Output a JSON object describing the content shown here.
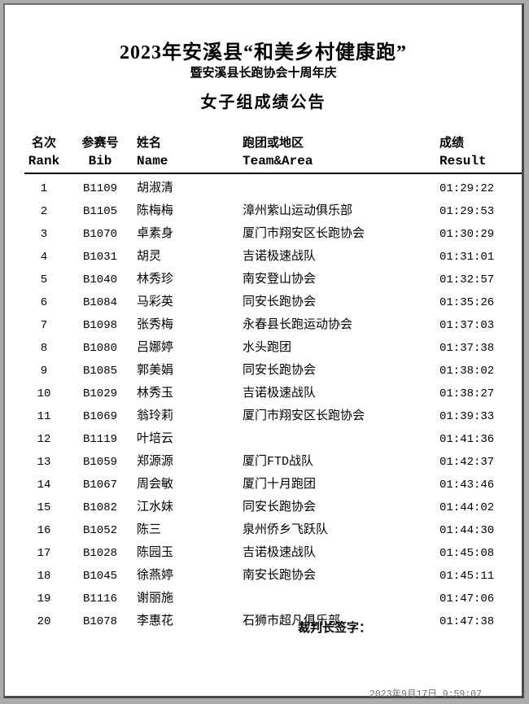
{
  "page": {
    "title_line1": "2023年安溪县“和美乡村健康跑”",
    "title_line2": "暨安溪县长跑协会十周年庆",
    "group_title": "女子组成绩公告",
    "signature_label": "裁判长签字：",
    "footer_timestamp": "2023年9月17日 9:59:07"
  },
  "colors": {
    "canvas_bg": "#ababab",
    "page_bg": "#ffffff",
    "text": "#000000",
    "timestamp_gray": "#6f6f6f",
    "frame_dark": "#4a4a4a",
    "frame_light": "#6e6e6e"
  },
  "table": {
    "headers": [
      {
        "zh": "名次",
        "en": "Rank"
      },
      {
        "zh": "参赛号",
        "en": "Bib"
      },
      {
        "zh": "姓名",
        "en": "Name"
      },
      {
        "zh": "跑团或地区",
        "en": "Team&Area"
      },
      {
        "zh": "成绩",
        "en": "Result"
      }
    ],
    "rows": [
      {
        "rank": "1",
        "bib": "B1109",
        "name": "胡淑清",
        "team": "",
        "result": "01:29:22"
      },
      {
        "rank": "2",
        "bib": "B1105",
        "name": "陈梅梅",
        "team": "漳州紫山运动俱乐部",
        "result": "01:29:53"
      },
      {
        "rank": "3",
        "bib": "B1070",
        "name": "卓素身",
        "team": "厦门市翔安区长跑协会",
        "result": "01:30:29"
      },
      {
        "rank": "4",
        "bib": "B1031",
        "name": "胡灵",
        "team": "吉诺极速战队",
        "result": "01:31:01"
      },
      {
        "rank": "5",
        "bib": "B1040",
        "name": "林秀珍",
        "team": "南安登山协会",
        "result": "01:32:57"
      },
      {
        "rank": "6",
        "bib": "B1084",
        "name": "马彩英",
        "team": "同安长跑协会",
        "result": "01:35:26"
      },
      {
        "rank": "7",
        "bib": "B1098",
        "name": "张秀梅",
        "team": "永春县长跑运动协会",
        "result": "01:37:03"
      },
      {
        "rank": "8",
        "bib": "B1080",
        "name": "吕娜婷",
        "team": "水头跑团",
        "result": "01:37:38"
      },
      {
        "rank": "9",
        "bib": "B1085",
        "name": "郭美娟",
        "team": "同安长跑协会",
        "result": "01:38:02"
      },
      {
        "rank": "10",
        "bib": "B1029",
        "name": "林秀玉",
        "team": "吉诺极速战队",
        "result": "01:38:27"
      },
      {
        "rank": "11",
        "bib": "B1069",
        "name": "翁玲莉",
        "team": "厦门市翔安区长跑协会",
        "result": "01:39:33"
      },
      {
        "rank": "12",
        "bib": "B1119",
        "name": "叶培云",
        "team": "",
        "result": "01:41:36"
      },
      {
        "rank": "13",
        "bib": "B1059",
        "name": "郑源源",
        "team": "厦门FTD战队",
        "result": "01:42:37"
      },
      {
        "rank": "14",
        "bib": "B1067",
        "name": "周会敏",
        "team": "厦门十月跑团",
        "result": "01:43:46"
      },
      {
        "rank": "15",
        "bib": "B1082",
        "name": "江水妹",
        "team": "同安长跑协会",
        "result": "01:44:02"
      },
      {
        "rank": "16",
        "bib": "B1052",
        "name": "陈三",
        "team": "泉州侨乡飞跃队",
        "result": "01:44:30"
      },
      {
        "rank": "17",
        "bib": "B1028",
        "name": "陈园玉",
        "team": "吉诺极速战队",
        "result": "01:45:08"
      },
      {
        "rank": "18",
        "bib": "B1045",
        "name": "徐燕婷",
        "team": "南安长跑协会",
        "result": "01:45:11"
      },
      {
        "rank": "19",
        "bib": "B1116",
        "name": "谢丽施",
        "team": "",
        "result": "01:47:06"
      },
      {
        "rank": "20",
        "bib": "B1078",
        "name": "李惠花",
        "team": "石狮市超凡俱乐部",
        "result": "01:47:38"
      }
    ]
  }
}
